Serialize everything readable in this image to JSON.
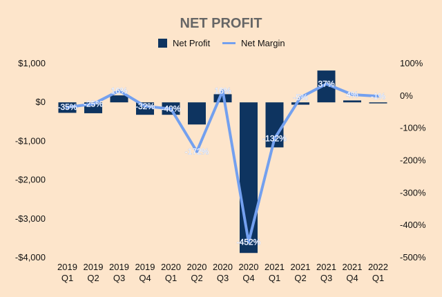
{
  "chart_data": {
    "type": "bar+line",
    "title": "NET PROFIT",
    "legend": {
      "placement": "top-center",
      "entries": [
        "Net Profit",
        "Net Margin"
      ]
    },
    "categories": [
      [
        "2019",
        "Q1"
      ],
      [
        "2019",
        "Q2"
      ],
      [
        "2019",
        "Q3"
      ],
      [
        "2019",
        "Q4"
      ],
      [
        "2020",
        "Q1"
      ],
      [
        "2020",
        "Q2"
      ],
      [
        "2020",
        "Q3"
      ],
      [
        "2020",
        "Q4"
      ],
      [
        "2021",
        "Q1"
      ],
      [
        "2021",
        "Q2"
      ],
      [
        "2021",
        "Q3"
      ],
      [
        "2021",
        "Q4"
      ],
      [
        "2022",
        "Q1"
      ]
    ],
    "series": [
      {
        "name": "Net Profit",
        "type": "bar",
        "axis": "left",
        "color": "#0e3460",
        "values": [
          -270,
          -280,
          180,
          -320,
          -320,
          -570,
          210,
          -3880,
          -1160,
          -60,
          820,
          50,
          -20
        ]
      },
      {
        "name": "Net Margin",
        "type": "line",
        "axis": "right",
        "color": "#73a0ef",
        "values": [
          -35,
          -25,
          16,
          -32,
          -40,
          -172,
          16,
          -452,
          -132,
          -5,
          37,
          4,
          -1
        ],
        "labels": [
          "-35%",
          "-25%",
          "16%",
          "-32%",
          "-40%",
          "-172%",
          "16%",
          "-452%",
          "-132%",
          "-5%",
          "37%",
          "4%",
          "-1%"
        ]
      }
    ],
    "y_left": {
      "range": [
        -4000,
        1000
      ],
      "ticks": [
        1000,
        0,
        -1000,
        -2000,
        -3000,
        -4000
      ],
      "tick_labels": [
        "$1,000",
        "$0",
        "-$1,000",
        "-$2,000",
        "-$3,000",
        "-$4,000"
      ]
    },
    "y_right": {
      "range": [
        -500,
        100
      ],
      "ticks": [
        100,
        0,
        -100,
        -200,
        -300,
        -400,
        -500
      ],
      "tick_labels": [
        "100%",
        "0%",
        "-100%",
        "-200%",
        "-300%",
        "-400%",
        "-500%"
      ]
    },
    "grid": false
  }
}
